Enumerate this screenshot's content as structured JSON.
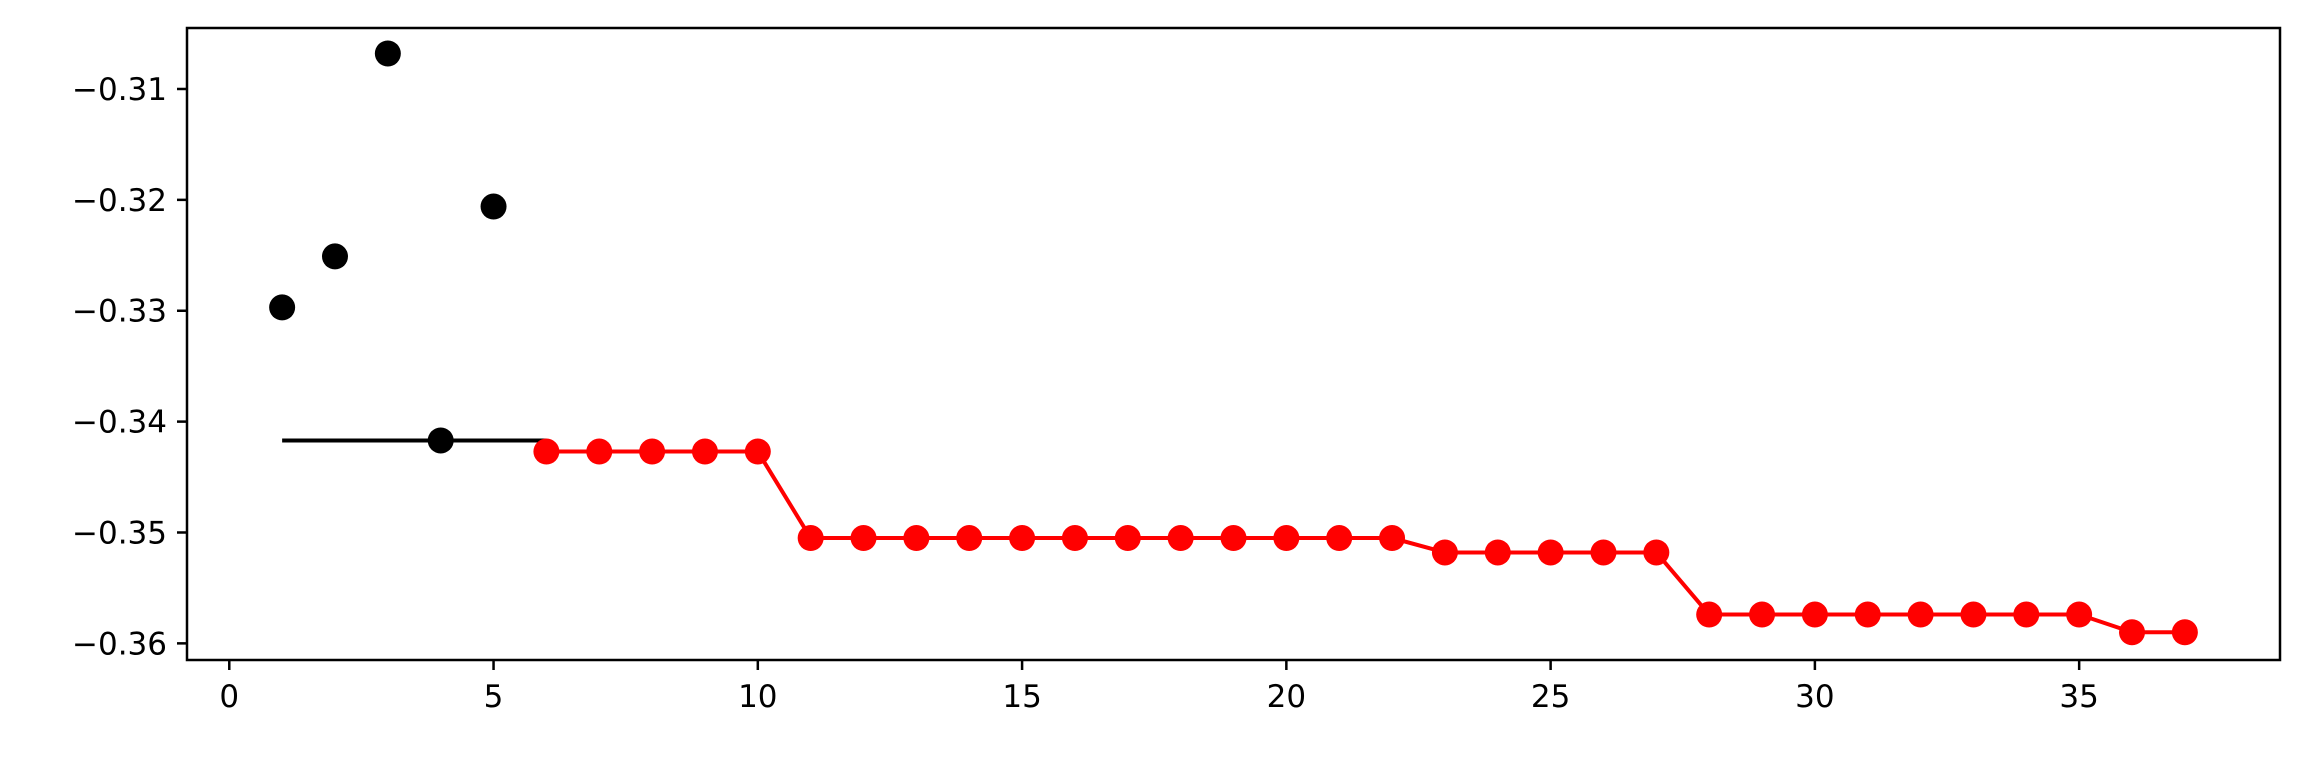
{
  "chart_data": {
    "type": "line",
    "title": "",
    "xlabel": "",
    "ylabel": "",
    "xlim": [
      -0.8,
      38.8
    ],
    "ylim": [
      -0.3615,
      -0.3045
    ],
    "grid": false,
    "x_ticks": [
      0,
      5,
      10,
      15,
      20,
      25,
      30,
      35
    ],
    "y_ticks": [
      -0.31,
      -0.32,
      -0.33,
      -0.34,
      -0.35,
      -0.36
    ],
    "x_tick_labels": [
      "0",
      "5",
      "10",
      "15",
      "20",
      "25",
      "30",
      "35"
    ],
    "y_tick_labels": [
      "−0.31",
      "−0.32",
      "−0.33",
      "−0.34",
      "−0.35",
      "−0.36"
    ],
    "series": [
      {
        "style": "scatter",
        "color": "#000000",
        "x": [
          1,
          2,
          3,
          4,
          5
        ],
        "y": [
          -0.3297,
          -0.3251,
          -0.3068,
          -0.3417,
          -0.3206
        ]
      },
      {
        "style": "segment",
        "color": "#000000",
        "x": [
          1,
          6
        ],
        "y": [
          -0.3417,
          -0.3417
        ]
      },
      {
        "style": "line-marker",
        "color": "#ff0000",
        "x": [
          6,
          7,
          8,
          9,
          10,
          11,
          12,
          13,
          14,
          15,
          16,
          17,
          18,
          19,
          20,
          21,
          22,
          23,
          24,
          25,
          26,
          27,
          28,
          29,
          30,
          31,
          32,
          33,
          34,
          35,
          36,
          37
        ],
        "y": [
          -0.3427,
          -0.3427,
          -0.3427,
          -0.3427,
          -0.3427,
          -0.3505,
          -0.3505,
          -0.3505,
          -0.3505,
          -0.3505,
          -0.3505,
          -0.3505,
          -0.3505,
          -0.3505,
          -0.3505,
          -0.3505,
          -0.3505,
          -0.3518,
          -0.3518,
          -0.3518,
          -0.3518,
          -0.3518,
          -0.3574,
          -0.3574,
          -0.3574,
          -0.3574,
          -0.3574,
          -0.3574,
          -0.3574,
          -0.3574,
          -0.359,
          -0.359
        ]
      }
    ]
  }
}
